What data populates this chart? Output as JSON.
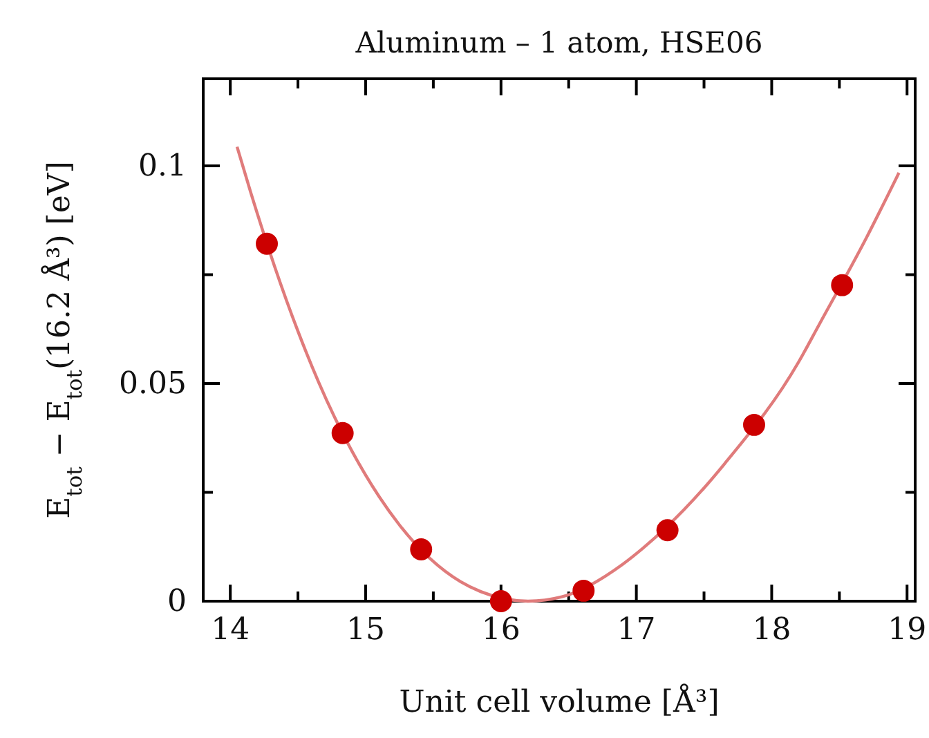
{
  "chart_data": {
    "type": "scatter",
    "title": "Aluminum – 1 atom, HSE06",
    "xlabel": "Unit cell volume [Å³]",
    "ylabel": "E$_{tot}$ − E$_{tot}$(16.2 Å³) [eV]",
    "xlim": [
      13.8,
      19.06
    ],
    "ylim": [
      0,
      0.12
    ],
    "xticks": [
      14,
      {
        "value": 14.5,
        "label": null
      },
      15,
      {
        "value": 15.5,
        "label": null
      },
      16,
      {
        "value": 16.5,
        "label": null
      },
      17,
      {
        "value": 17.5,
        "label": null
      },
      18,
      {
        "value": 18.5,
        "label": null
      },
      19
    ],
    "yticks": [
      0,
      {
        "value": 0.025,
        "label": null
      },
      0.05,
      {
        "value": 0.075,
        "label": null
      },
      0.1
    ],
    "series": [
      {
        "type": "line",
        "color": "#e07b7b",
        "marker": "none",
        "line_style": "solid",
        "x": [
          14.05,
          14.15,
          14.5,
          14.65,
          15.1,
          15.25,
          15.7,
          15.85,
          16.2,
          16.45,
          16.9,
          17.05,
          17.5,
          17.65,
          18.2,
          18.35,
          18.7,
          18.94
        ],
        "values": [
          0.1044,
          0.094,
          0.062,
          0.0505,
          0.024,
          0.0175,
          0.0045,
          0.0022,
          0,
          0.001,
          0.0085,
          0.0122,
          0.026,
          0.0315,
          0.055,
          0.0635,
          0.0835,
          0.0984
        ]
      },
      {
        "color": "#cc0000",
        "marker": "circle",
        "x": [
          14.27,
          14.83,
          15.41,
          16.0,
          16.61,
          17.23,
          17.87,
          18.52
        ],
        "values": [
          0.0821,
          0.0386,
          0.0119,
          0,
          0.0024,
          0.0163,
          0.0405,
          0.0726
        ]
      }
    ]
  }
}
